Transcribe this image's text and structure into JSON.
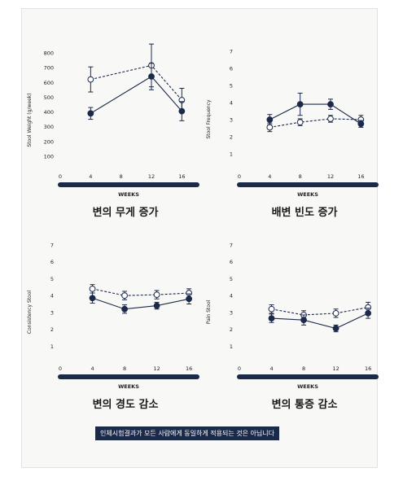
{
  "colors": {
    "navy": "#1c2a4a",
    "text": "#222222",
    "card_bg": "#f8f8f7"
  },
  "disclaimer": "인체시험결과가 모든 사람에게 동일하게 적용되는 것은 아닙니다",
  "chart_data": [
    {
      "type": "line",
      "title": "변의 무게 증가",
      "xlabel": "WEEKS",
      "ylabel": "Stool Weight (g/week)",
      "x_ticks": [
        0,
        4,
        8,
        12,
        16
      ],
      "y_ticks": [
        100,
        200,
        300,
        400,
        500,
        600,
        700,
        800
      ],
      "xlim": [
        0,
        18
      ],
      "ylim": [
        0,
        800
      ],
      "x": [
        4,
        12,
        16
      ],
      "series": [
        {
          "style": "dashed-open",
          "values": [
            620,
            715,
            480
          ],
          "errors": [
            85,
            145,
            80
          ]
        },
        {
          "style": "solid-filled",
          "values": [
            390,
            640,
            405
          ],
          "errors": [
            40,
            90,
            65
          ]
        }
      ]
    },
    {
      "type": "line",
      "title": "배변 빈도 증가",
      "xlabel": "WEEKS",
      "ylabel": "Stool Frequency",
      "x_ticks": [
        0,
        4,
        8,
        12,
        16
      ],
      "y_ticks": [
        1,
        2,
        3,
        4,
        5,
        6,
        7
      ],
      "xlim": [
        0,
        18
      ],
      "ylim": [
        0,
        7
      ],
      "x": [
        4,
        8,
        12,
        16
      ],
      "series": [
        {
          "style": "dashed-open",
          "values": [
            2.55,
            2.85,
            3.05,
            3.0
          ],
          "errors": [
            0.25,
            0.2,
            0.2,
            0.25
          ]
        },
        {
          "style": "solid-filled",
          "values": [
            3.0,
            3.9,
            3.9,
            2.75
          ],
          "errors": [
            0.3,
            0.65,
            0.3,
            0.2
          ]
        }
      ]
    },
    {
      "type": "line",
      "title": "변의 경도 감소",
      "xlabel": "WEEKS",
      "ylabel": "Consistency Stool",
      "x_ticks": [
        0,
        4,
        8,
        12,
        16
      ],
      "y_ticks": [
        1,
        2,
        3,
        4,
        5,
        6,
        7
      ],
      "xlim": [
        0,
        17
      ],
      "ylim": [
        0,
        7
      ],
      "x": [
        4,
        8,
        12,
        16
      ],
      "series": [
        {
          "style": "dashed-open",
          "values": [
            4.4,
            4.0,
            4.05,
            4.15
          ],
          "errors": [
            0.25,
            0.25,
            0.25,
            0.25
          ]
        },
        {
          "style": "solid-filled",
          "values": [
            3.85,
            3.2,
            3.4,
            3.8
          ],
          "errors": [
            0.3,
            0.25,
            0.2,
            0.3
          ]
        }
      ]
    },
    {
      "type": "line",
      "title": "변의 통증 감소",
      "xlabel": "WEEKS",
      "ylabel": "Pain Stool",
      "x_ticks": [
        0,
        4,
        8,
        12,
        16
      ],
      "y_ticks": [
        1,
        2,
        3,
        4,
        5,
        6,
        7
      ],
      "xlim": [
        0,
        17
      ],
      "ylim": [
        0,
        7
      ],
      "x": [
        4,
        8,
        12,
        16
      ],
      "series": [
        {
          "style": "dashed-open",
          "values": [
            3.2,
            2.85,
            2.95,
            3.3
          ],
          "errors": [
            0.25,
            0.25,
            0.25,
            0.3
          ]
        },
        {
          "style": "solid-filled",
          "values": [
            2.65,
            2.55,
            2.05,
            2.95
          ],
          "errors": [
            0.25,
            0.3,
            0.2,
            0.3
          ]
        }
      ]
    }
  ]
}
